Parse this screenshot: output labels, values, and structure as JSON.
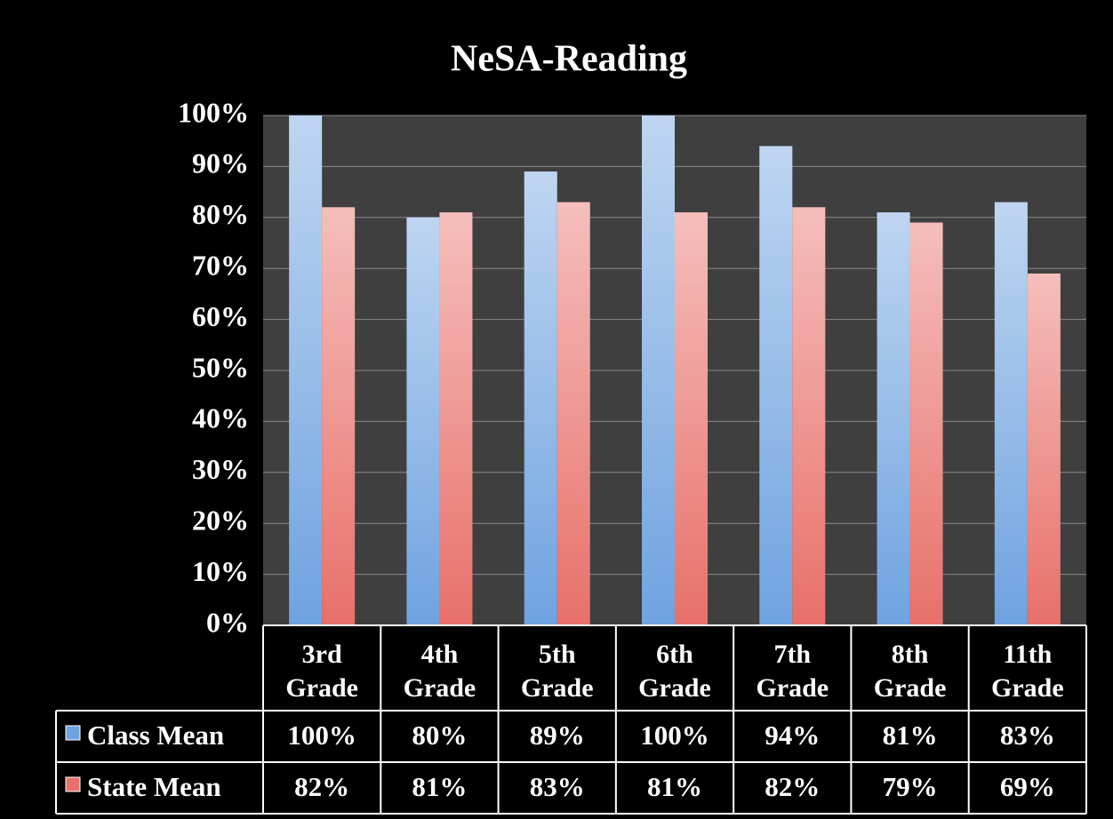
{
  "chart_data": {
    "type": "bar",
    "title": "NeSA-Reading",
    "categories": [
      "3rd Grade",
      "4th Grade",
      "5th Grade",
      "6th Grade",
      "7th Grade",
      "8th Grade",
      "11th Grade"
    ],
    "series": [
      {
        "name": "Class Mean",
        "color": "#6fa3e0",
        "values": [
          100,
          80,
          89,
          100,
          94,
          81,
          83
        ],
        "value_labels": [
          "100%",
          "80%",
          "89%",
          "100%",
          "94%",
          "81%",
          "83%"
        ]
      },
      {
        "name": "State Mean",
        "color": "#e8706a",
        "values": [
          82,
          81,
          83,
          81,
          82,
          79,
          69
        ],
        "value_labels": [
          "82%",
          "81%",
          "83%",
          "81%",
          "82%",
          "79%",
          "69%"
        ]
      }
    ],
    "ylim": [
      0,
      100
    ],
    "yticks": [
      {
        "value": 0,
        "label": "0%"
      },
      {
        "value": 10,
        "label": "10%"
      },
      {
        "value": 20,
        "label": "20%"
      },
      {
        "value": 30,
        "label": "30%"
      },
      {
        "value": 40,
        "label": "40%"
      },
      {
        "value": 50,
        "label": "50%"
      },
      {
        "value": 60,
        "label": "60%"
      },
      {
        "value": 70,
        "label": "70%"
      },
      {
        "value": 80,
        "label": "80%"
      },
      {
        "value": 90,
        "label": "90%"
      },
      {
        "value": 100,
        "label": "100%"
      }
    ],
    "grid": true
  }
}
